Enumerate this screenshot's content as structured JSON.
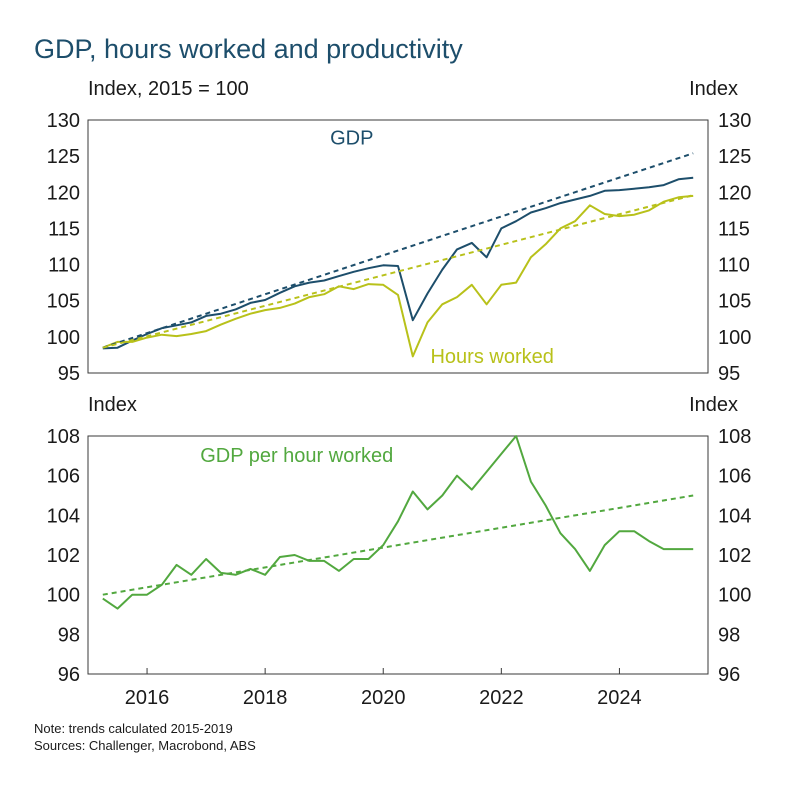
{
  "title": "GDP, hours worked and productivity",
  "note": "Note: trends calculated 2015-2019",
  "sources": "Sources: Challenger, Macrobond, ABS",
  "colors": {
    "gdp": "#1d4e6b",
    "hours": "#b8c11a",
    "productivity": "#52a83f",
    "title": "#1d4e6b"
  },
  "chart_data": [
    {
      "type": "line",
      "panel": "top",
      "left_unit": "Index, 2015 = 100",
      "right_unit": "Index",
      "ylim": [
        95,
        130
      ],
      "yticks": [
        "130",
        "125",
        "120",
        "115",
        "110",
        "105",
        "100",
        "95"
      ],
      "xlim": [
        2015,
        2025.5
      ],
      "annotations": [
        {
          "text": "GDP",
          "series": "GDP"
        },
        {
          "text": "Hours worked",
          "series": "Hours worked"
        }
      ],
      "series": [
        {
          "name": "GDP",
          "style": "solid",
          "x": [
            2015.25,
            2015.5,
            2015.75,
            2016,
            2016.25,
            2016.5,
            2016.75,
            2017,
            2017.25,
            2017.5,
            2017.75,
            2018,
            2018.25,
            2018.5,
            2018.75,
            2019,
            2019.25,
            2019.5,
            2019.75,
            2020,
            2020.25,
            2020.5,
            2020.75,
            2021,
            2021.25,
            2021.5,
            2021.75,
            2022,
            2022.25,
            2022.5,
            2022.75,
            2023,
            2023.25,
            2023.5,
            2023.75,
            2024,
            2024.25,
            2024.5,
            2024.75,
            2025,
            2025.25
          ],
          "values": [
            98.4,
            98.5,
            99.5,
            100.4,
            101.2,
            101.6,
            102,
            102.9,
            103.2,
            103.8,
            104.7,
            105.1,
            106.1,
            107,
            107.5,
            107.8,
            108.4,
            109,
            109.5,
            109.9,
            109.8,
            102.3,
            106,
            109.3,
            112.1,
            113,
            111,
            115,
            116,
            117.2,
            117.8,
            118.5,
            119,
            119.5,
            120.2,
            120.3,
            120.5,
            120.7,
            121,
            121.8,
            122
          ]
        },
        {
          "name": "Hours worked",
          "style": "solid",
          "x": [
            2015.25,
            2015.5,
            2015.75,
            2016,
            2016.25,
            2016.5,
            2016.75,
            2017,
            2017.25,
            2017.5,
            2017.75,
            2018,
            2018.25,
            2018.5,
            2018.75,
            2019,
            2019.25,
            2019.5,
            2019.75,
            2020,
            2020.25,
            2020.5,
            2020.75,
            2021,
            2021.25,
            2021.5,
            2021.75,
            2022,
            2022.25,
            2022.5,
            2022.75,
            2023,
            2023.25,
            2023.5,
            2023.75,
            2024,
            2024.25,
            2024.5,
            2024.75,
            2025,
            2025.25
          ],
          "values": [
            98.5,
            99.3,
            99.3,
            99.9,
            100.3,
            100.1,
            100.4,
            100.8,
            101.7,
            102.5,
            103.2,
            103.7,
            104,
            104.6,
            105.5,
            105.9,
            107,
            106.6,
            107.3,
            107.2,
            105.8,
            97.3,
            102,
            104.5,
            105.5,
            107.2,
            104.5,
            107.2,
            107.5,
            111,
            112.8,
            115,
            116,
            118.2,
            117,
            116.7,
            116.9,
            117.5,
            118.7,
            119.3,
            119.5
          ]
        },
        {
          "name": "GDP trend",
          "style": "dashed",
          "x": [
            2015.25,
            2025.25
          ],
          "values": [
            98.5,
            125.4
          ]
        },
        {
          "name": "Hours worked trend",
          "style": "dashed",
          "x": [
            2015.25,
            2025.25
          ],
          "values": [
            98.5,
            119.6
          ]
        }
      ]
    },
    {
      "type": "line",
      "panel": "bottom",
      "left_unit": "Index",
      "right_unit": "Index",
      "ylim": [
        96,
        108
      ],
      "yticks": [
        "108",
        "106",
        "104",
        "102",
        "100",
        "98",
        "96"
      ],
      "xlim": [
        2015,
        2025.5
      ],
      "xticks": [
        "2016",
        "2018",
        "2020",
        "2022",
        "2024"
      ],
      "annotations": [
        {
          "text": "GDP per hour worked",
          "series": "GDP per hour worked"
        }
      ],
      "series": [
        {
          "name": "GDP per hour worked",
          "style": "solid",
          "x": [
            2015.25,
            2015.5,
            2015.75,
            2016,
            2016.25,
            2016.5,
            2016.75,
            2017,
            2017.25,
            2017.5,
            2017.75,
            2018,
            2018.25,
            2018.5,
            2018.75,
            2019,
            2019.25,
            2019.5,
            2019.75,
            2020,
            2020.25,
            2020.5,
            2020.75,
            2021,
            2021.25,
            2021.5,
            2021.75,
            2022,
            2022.25,
            2022.5,
            2022.75,
            2023,
            2023.25,
            2023.5,
            2023.75,
            2024,
            2024.25,
            2024.5,
            2024.75,
            2025,
            2025.25
          ],
          "values": [
            99.8,
            99.3,
            100,
            100,
            100.5,
            101.5,
            101,
            101.8,
            101.1,
            101,
            101.3,
            101,
            101.9,
            102,
            101.7,
            101.7,
            101.2,
            101.8,
            101.8,
            102.5,
            103.7,
            105.2,
            104.3,
            105,
            106,
            105.3,
            106.2,
            107.1,
            108,
            105.7,
            104.5,
            103.1,
            102.3,
            101.2,
            102.5,
            103.2,
            103.2,
            102.7,
            102.3,
            102.3,
            102.3
          ]
        },
        {
          "name": "GDP per hour worked trend",
          "style": "dashed",
          "x": [
            2015.25,
            2025.25
          ],
          "values": [
            100,
            105
          ]
        }
      ]
    }
  ]
}
